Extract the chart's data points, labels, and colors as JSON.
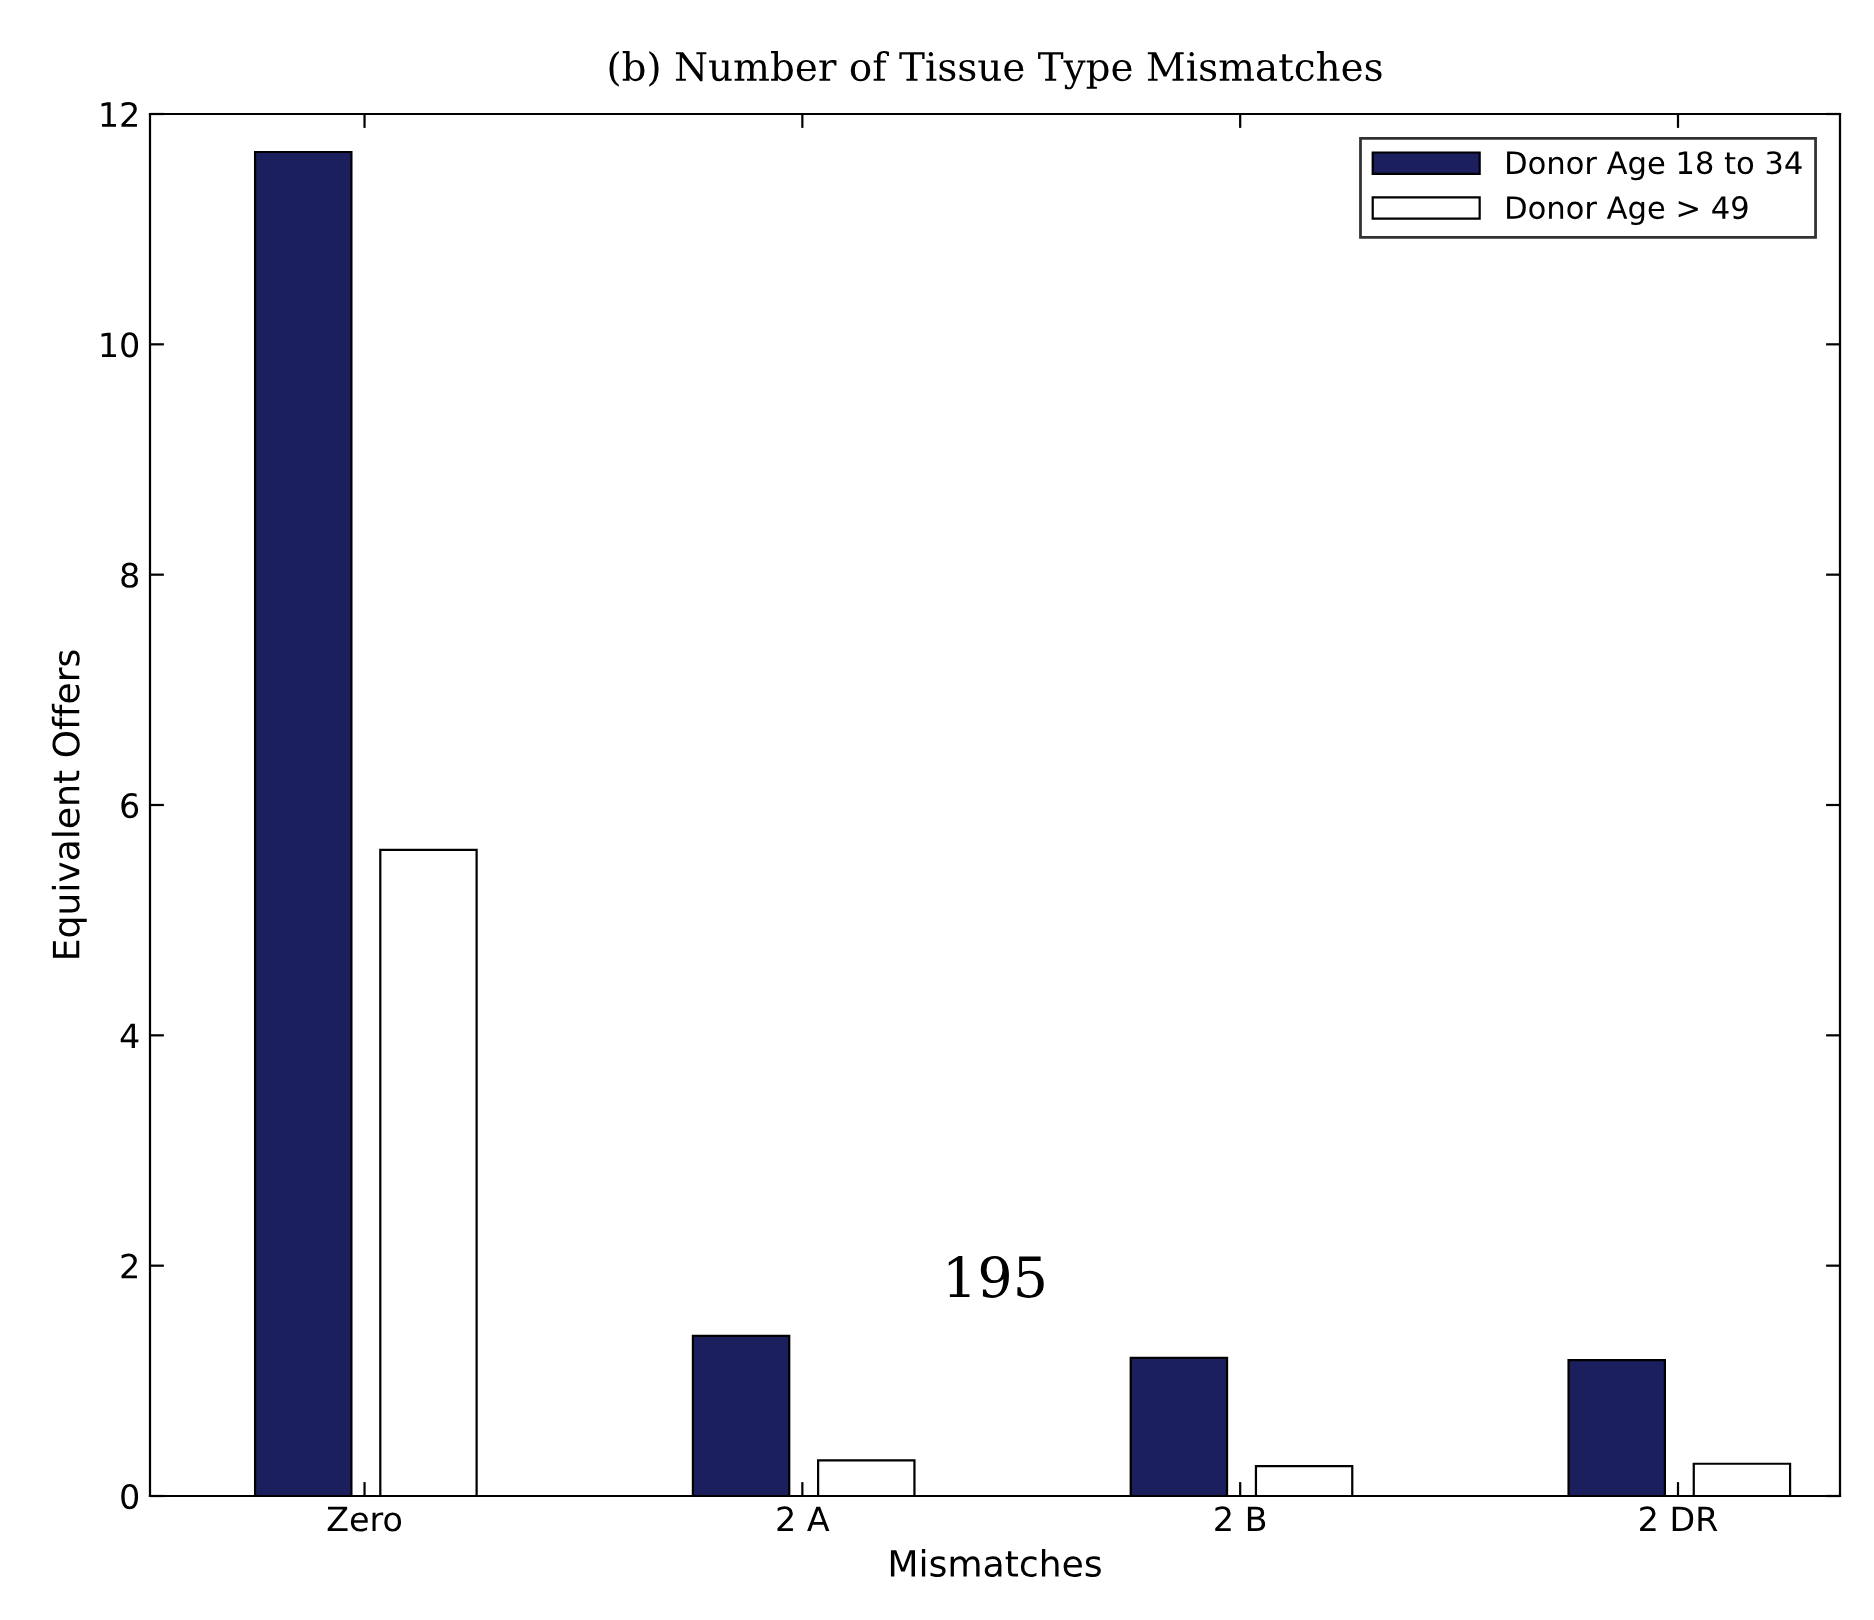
{
  "chart_data": {
    "type": "bar",
    "title": "(b) Number of Tissue Type Mismatches",
    "xlabel": "Mismatches",
    "ylabel": "Equivalent Offers",
    "categories": [
      "Zero",
      "2 A",
      "2 B",
      "2 DR"
    ],
    "series": [
      {
        "name": "Donor Age 18 to 34",
        "color": "#1c1f5e",
        "values": [
          11.67,
          1.39,
          1.2,
          1.18
        ]
      },
      {
        "name": "Donor Age > 49",
        "color": "#ffffff",
        "values": [
          5.61,
          0.31,
          0.26,
          0.28
        ]
      }
    ],
    "ylim": [
      0,
      12
    ],
    "yticks": [
      0,
      2,
      4,
      6,
      8,
      10,
      12
    ],
    "legend": "top right",
    "grid": false,
    "annotations": [
      "195"
    ]
  }
}
